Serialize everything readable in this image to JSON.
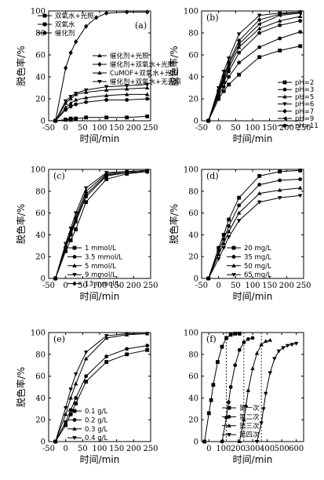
{
  "chart_data": [
    {
      "type": "line",
      "panel": "(a)",
      "xlabel": "时间/min",
      "ylabel": "脱色率/%",
      "xlim": [
        -50,
        250
      ],
      "ylim": [
        0,
        100
      ],
      "xticks": [
        -50,
        0,
        50,
        100,
        150,
        200,
        250
      ],
      "yticks": [
        0,
        20,
        40,
        60,
        80,
        100
      ],
      "legend_position": "top-left + middle-right",
      "series": [
        {
          "name": "双氧水+光照",
          "marker": "square",
          "x": [
            -30,
            0,
            15,
            30
          ],
          "y": [
            0,
            1,
            1,
            2
          ]
        },
        {
          "name": "双氧水",
          "marker": "square",
          "x": [
            -30,
            0,
            15,
            30,
            60,
            120,
            180,
            240
          ],
          "y": [
            0,
            1,
            2,
            2,
            3,
            3,
            3,
            4
          ]
        },
        {
          "name": "催化剂",
          "marker": "circle",
          "x": [
            -30,
            0,
            15,
            30,
            60,
            120,
            180,
            240
          ],
          "y": [
            0,
            10,
            13,
            15,
            17,
            19,
            19,
            20
          ]
        },
        {
          "name": "催化剂+光照",
          "marker": "triangle-up",
          "x": [
            -30,
            0,
            15,
            30,
            60,
            120,
            180,
            240
          ],
          "y": [
            0,
            12,
            16,
            19,
            21,
            23,
            24,
            24
          ]
        },
        {
          "name": "催化剂+双氧水+光照",
          "marker": "diamond",
          "x": [
            -30,
            0,
            15,
            30,
            60,
            90,
            120,
            180,
            240
          ],
          "y": [
            0,
            48,
            62,
            72,
            86,
            94,
            98,
            99,
            99
          ]
        },
        {
          "name": "CuMOF+双氧水+光照",
          "marker": "triangle-up",
          "x": [
            -30,
            0,
            15,
            30,
            60,
            120,
            180,
            240
          ],
          "y": [
            0,
            16,
            20,
            24,
            26,
            28,
            29,
            30
          ]
        },
        {
          "name": "催化剂+双氧水+无光照",
          "marker": "triangle-down",
          "x": [
            -30,
            0,
            15,
            30,
            60,
            120,
            180,
            240
          ],
          "y": [
            0,
            18,
            22,
            25,
            28,
            31,
            32,
            33
          ]
        }
      ]
    },
    {
      "type": "line",
      "panel": "(b)",
      "xlabel": "时间/min",
      "ylabel": "脱色率/%",
      "xlim": [
        -50,
        250
      ],
      "ylim": [
        0,
        100
      ],
      "xticks": [
        -50,
        0,
        50,
        100,
        150,
        200,
        250
      ],
      "yticks": [
        0,
        20,
        40,
        60,
        80,
        100
      ],
      "legend_position": "bottom-right",
      "series": [
        {
          "name": "pH=2",
          "marker": "square",
          "x": [
            -30,
            0,
            15,
            30,
            60,
            120,
            180,
            240
          ],
          "y": [
            0,
            20,
            27,
            33,
            42,
            58,
            64,
            68
          ]
        },
        {
          "name": "pH=3",
          "marker": "circle",
          "x": [
            -30,
            0,
            15,
            30,
            60,
            120,
            180,
            240
          ],
          "y": [
            0,
            23,
            31,
            40,
            53,
            67,
            75,
            81
          ]
        },
        {
          "name": "pH=5",
          "marker": "triangle-up",
          "x": [
            -30,
            0,
            15,
            30,
            60,
            120,
            180,
            240
          ],
          "y": [
            0,
            26,
            37,
            48,
            67,
            84,
            91,
            95
          ]
        },
        {
          "name": "pH=6",
          "marker": "triangle-down",
          "x": [
            -30,
            0,
            15,
            30,
            60,
            120,
            180,
            240
          ],
          "y": [
            0,
            30,
            45,
            57,
            79,
            96,
            98,
            99
          ]
        },
        {
          "name": "pH=7",
          "marker": "diamond",
          "x": [
            -30,
            0,
            15,
            30,
            60,
            120,
            180,
            240
          ],
          "y": [
            0,
            28,
            41,
            53,
            73,
            92,
            97,
            99
          ]
        },
        {
          "name": "pH=9",
          "marker": "triangle-left",
          "x": [
            -30,
            0,
            15,
            30,
            60,
            120,
            180,
            240
          ],
          "y": [
            0,
            27,
            39,
            51,
            70,
            88,
            96,
            98
          ]
        },
        {
          "name": "pH=11",
          "marker": "pentagon",
          "x": [
            -30,
            0,
            15,
            30,
            60,
            120,
            180,
            240
          ],
          "y": [
            0,
            25,
            35,
            45,
            62,
            80,
            87,
            91
          ]
        }
      ]
    },
    {
      "type": "line",
      "panel": "(c)",
      "xlabel": "时间/min",
      "ylabel": "脱色率/%",
      "xlim": [
        -50,
        250
      ],
      "ylim": [
        0,
        100
      ],
      "xticks": [
        -50,
        0,
        50,
        100,
        150,
        200,
        250
      ],
      "yticks": [
        0,
        20,
        40,
        60,
        80,
        100
      ],
      "legend_position": "bottom-right",
      "series": [
        {
          "name": "1 mmol/L",
          "marker": "square",
          "x": [
            -30,
            0,
            15,
            30,
            60,
            120,
            180,
            240
          ],
          "y": [
            0,
            25,
            35,
            45,
            70,
            91,
            96,
            98
          ]
        },
        {
          "name": "3.5 mmol/L",
          "marker": "circle",
          "x": [
            -30,
            0,
            15,
            30,
            60,
            120,
            180,
            240
          ],
          "y": [
            0,
            28,
            40,
            52,
            75,
            94,
            97,
            98
          ]
        },
        {
          "name": "5 mmol/L",
          "marker": "triangle-up",
          "x": [
            -30,
            0,
            15,
            30,
            60,
            120,
            180,
            240
          ],
          "y": [
            0,
            30,
            43,
            56,
            80,
            96,
            98,
            99
          ]
        },
        {
          "name": "9 mmol/L",
          "marker": "triangle-down",
          "x": [
            -30,
            0,
            15,
            30,
            60,
            120,
            180,
            240
          ],
          "y": [
            0,
            32,
            46,
            60,
            83,
            97,
            98,
            99
          ]
        },
        {
          "name": "13 mmol/L",
          "marker": "diamond",
          "x": [
            -30,
            0,
            15,
            30,
            60,
            120,
            180,
            240
          ],
          "y": [
            0,
            29,
            41,
            54,
            77,
            95,
            97,
            98
          ]
        }
      ]
    },
    {
      "type": "line",
      "panel": "(d)",
      "xlabel": "时间/min",
      "ylabel": "脱色率/%",
      "xlim": [
        -50,
        250
      ],
      "ylim": [
        0,
        100
      ],
      "xticks": [
        -50,
        0,
        50,
        100,
        150,
        200,
        250
      ],
      "yticks": [
        0,
        20,
        40,
        60,
        80,
        100
      ],
      "legend_position": "bottom-right",
      "series": [
        {
          "name": "20 mg/L",
          "marker": "square",
          "x": [
            -30,
            0,
            15,
            30,
            60,
            120,
            180,
            240
          ],
          "y": [
            0,
            28,
            40,
            54,
            74,
            94,
            98,
            99
          ]
        },
        {
          "name": "35 mg/L",
          "marker": "circle",
          "x": [
            -30,
            0,
            15,
            30,
            60,
            120,
            180,
            240
          ],
          "y": [
            0,
            25,
            36,
            48,
            67,
            86,
            90,
            91
          ]
        },
        {
          "name": "50 mg/L",
          "marker": "triangle-up",
          "x": [
            -30,
            0,
            15,
            30,
            60,
            120,
            180,
            240
          ],
          "y": [
            0,
            22,
            32,
            43,
            60,
            78,
            81,
            83
          ]
        },
        {
          "name": "65 mg/L",
          "marker": "triangle-down",
          "x": [
            -30,
            0,
            15,
            30,
            60,
            120,
            180,
            240
          ],
          "y": [
            0,
            18,
            28,
            38,
            53,
            70,
            74,
            76
          ]
        }
      ]
    },
    {
      "type": "line",
      "panel": "(e)",
      "xlabel": "时间/min",
      "ylabel": "脱色率/%",
      "xlim": [
        -50,
        250
      ],
      "ylim": [
        0,
        100
      ],
      "xticks": [
        -50,
        0,
        50,
        100,
        150,
        200,
        250
      ],
      "yticks": [
        0,
        20,
        40,
        60,
        80,
        100
      ],
      "legend_position": "bottom-right",
      "series": [
        {
          "name": "0.1 g/L",
          "marker": "square",
          "x": [
            -30,
            0,
            15,
            30,
            60,
            120,
            180,
            240
          ],
          "y": [
            0,
            15,
            25,
            35,
            55,
            73,
            80,
            84
          ]
        },
        {
          "name": "0.2 g/L",
          "marker": "circle",
          "x": [
            -30,
            0,
            15,
            30,
            60,
            120,
            180,
            240
          ],
          "y": [
            0,
            18,
            29,
            40,
            60,
            78,
            85,
            88
          ]
        },
        {
          "name": "0.3 g/L",
          "marker": "triangle-up",
          "x": [
            -30,
            0,
            15,
            30,
            60,
            120,
            180,
            240
          ],
          "y": [
            0,
            25,
            40,
            53,
            76,
            95,
            98,
            99
          ]
        },
        {
          "name": "0.4 g/L",
          "marker": "triangle-down",
          "x": [
            -30,
            0,
            15,
            30,
            60,
            120,
            180,
            240
          ],
          "y": [
            0,
            31,
            48,
            62,
            82,
            97,
            99,
            99
          ]
        }
      ]
    },
    {
      "type": "line",
      "panel": "(f)",
      "xlabel": "时间/min",
      "ylabel": "",
      "xlim": [
        -50,
        650
      ],
      "ylim": [
        0,
        100
      ],
      "xticks": [
        0,
        100,
        200,
        300,
        400,
        500,
        600
      ],
      "yticks": [
        0,
        20,
        40,
        60,
        80,
        100
      ],
      "vlines": [
        120,
        240,
        360
      ],
      "legend_position": "bottom-right",
      "series": [
        {
          "name": "第一次",
          "marker": "square",
          "x": [
            -30,
            0,
            15,
            30,
            60,
            90,
            120,
            150,
            180,
            210
          ],
          "y": [
            0,
            26,
            38,
            52,
            73,
            87,
            95,
            98,
            99,
            99
          ]
        },
        {
          "name": "第二次",
          "marker": "circle",
          "x": [
            90,
            120,
            135,
            150,
            180,
            210,
            240,
            270,
            300
          ],
          "y": [
            0,
            22,
            36,
            50,
            70,
            84,
            91,
            94,
            95
          ]
        },
        {
          "name": "第三次",
          "marker": "triangle-up",
          "x": [
            210,
            240,
            255,
            270,
            300,
            330,
            360,
            390,
            420
          ],
          "y": [
            0,
            20,
            33,
            47,
            67,
            81,
            89,
            92,
            93
          ]
        },
        {
          "name": "第四次",
          "marker": "triangle-down",
          "x": [
            330,
            360,
            375,
            390,
            420,
            450,
            480,
            510,
            540,
            570,
            600
          ],
          "y": [
            0,
            17,
            30,
            44,
            63,
            76,
            83,
            86,
            88,
            89,
            90
          ]
        }
      ]
    }
  ]
}
